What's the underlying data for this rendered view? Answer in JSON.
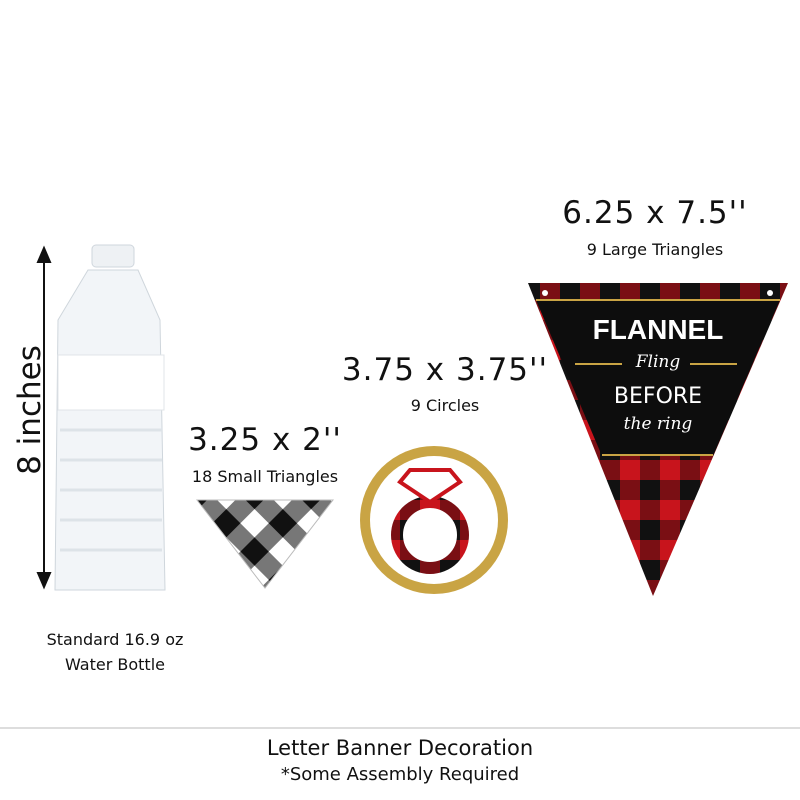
{
  "bottle": {
    "height_label": "8 inches",
    "caption_line1": "Standard 16.9 oz",
    "caption_line2": "Water Bottle"
  },
  "small_triangles": {
    "size": "3.25 x 2''",
    "caption": "18 Small Triangles"
  },
  "circles": {
    "size": "3.75 x 3.75''",
    "caption": "9 Circles"
  },
  "large_triangles": {
    "size": "6.25 x 7.5''",
    "caption": "9 Large Triangles",
    "title": "FLANNEL",
    "line2": "Fling",
    "line3": "BEFORE",
    "line4": "the ring"
  },
  "footer": {
    "title": "Letter Banner Decoration",
    "note": "*Some Assembly Required"
  },
  "colors": {
    "red": "#c8141c",
    "black": "#111111",
    "gold": "#c9a444"
  }
}
